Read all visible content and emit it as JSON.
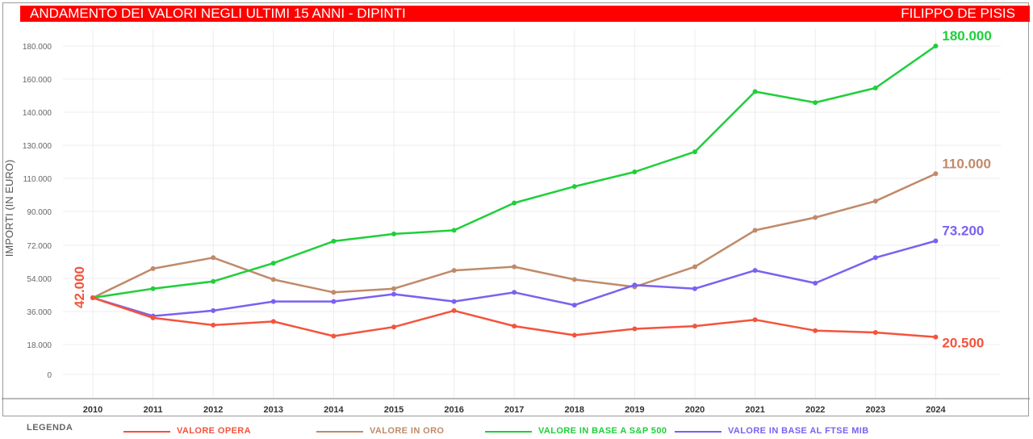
{
  "header": {
    "title": "ANDAMENTO DEI VALORI NEGLI ULTIMI 15 ANNI - DIPINTI",
    "artist": "FILIPPO DE PISIS",
    "background_color": "#ff0000"
  },
  "legend": {
    "title": "LEGENDA",
    "items": [
      {
        "label": "VALORE OPERA",
        "color": "#f4533c"
      },
      {
        "label": "VALORE IN ORO",
        "color": "#c08a6a"
      },
      {
        "label": "VALORE IN BASE A S&P 500",
        "color": "#1fcf3a"
      },
      {
        "label": "VALORE IN BASE AL FTSE MIB",
        "color": "#7b61f0"
      }
    ]
  },
  "chart_data": {
    "type": "line",
    "ylabel": "IMPORTI (IN EURO)",
    "x": [
      "2010",
      "2011",
      "2012",
      "2013",
      "2014",
      "2015",
      "2016",
      "2017",
      "2018",
      "2019",
      "2020",
      "2021",
      "2022",
      "2023",
      "2024"
    ],
    "y_ticks": [
      "0",
      "18.000",
      "36.000",
      "54.000",
      "72.000",
      "90.000",
      "110.000",
      "130.000",
      "140.000",
      "160.000",
      "180.000"
    ],
    "grid": true,
    "series": [
      {
        "name": "VALORE OPERA",
        "color": "#f4533c",
        "values": [
          42000,
          31000,
          27000,
          29000,
          21000,
          26000,
          35000,
          26500,
          21500,
          25000,
          26500,
          30000,
          24000,
          23000,
          20500
        ]
      },
      {
        "name": "VALORE IN ORO",
        "color": "#c08a6a",
        "values": [
          42000,
          58000,
          64000,
          52000,
          45000,
          47000,
          57000,
          59000,
          52000,
          48000,
          59000,
          79000,
          86000,
          95000,
          110000
        ]
      },
      {
        "name": "VALORE IN BASE A S&P 500",
        "color": "#1fcf3a",
        "values": [
          42000,
          47000,
          51000,
          61000,
          73000,
          77000,
          79000,
          94000,
          103000,
          111000,
          122000,
          155000,
          149000,
          157000,
          180000
        ]
      },
      {
        "name": "VALORE IN BASE AL FTSE MIB",
        "color": "#7b61f0",
        "values": [
          42000,
          32000,
          35000,
          40000,
          40000,
          44000,
          40000,
          45000,
          38000,
          49000,
          47000,
          57000,
          50000,
          64000,
          73200
        ]
      }
    ],
    "annotations": [
      {
        "text": "180.000",
        "series": 2,
        "position": "end",
        "color": "#1fcf3a"
      },
      {
        "text": "110.000",
        "series": 1,
        "position": "end",
        "color": "#c08a6a"
      },
      {
        "text": "73.200",
        "series": 3,
        "position": "end",
        "color": "#7b61f0"
      },
      {
        "text": "20.500",
        "series": 0,
        "position": "end",
        "color": "#f4533c"
      },
      {
        "text": "42.000",
        "series": 0,
        "position": "start",
        "color": "#f4533c"
      }
    ]
  }
}
